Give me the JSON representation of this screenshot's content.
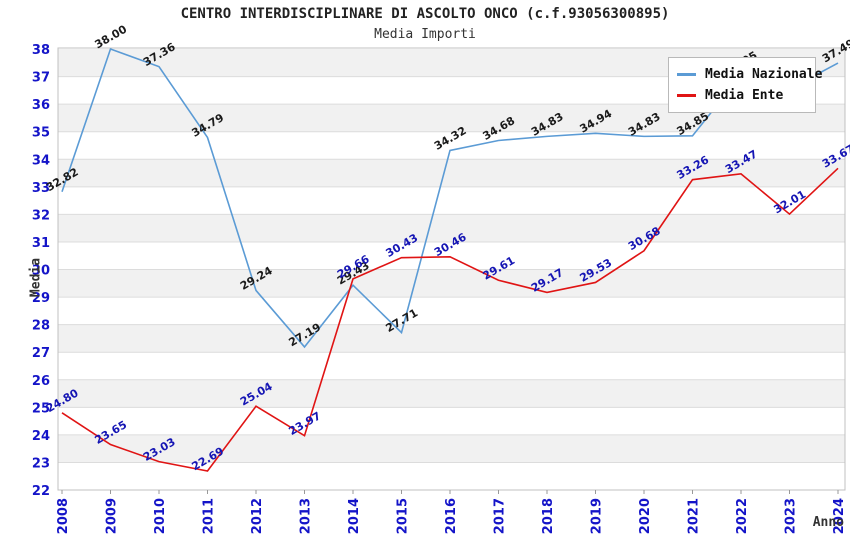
{
  "title": "CENTRO INTERDISCIPLINARE DI ASCOLTO ONCO (c.f.93056300895)",
  "subtitle": "Media Importi",
  "axes": {
    "y_title": "Media",
    "x_title": "Anno",
    "y_ticks": [
      22,
      23,
      24,
      25,
      26,
      27,
      28,
      29,
      30,
      31,
      32,
      33,
      34,
      35,
      36,
      37,
      38
    ],
    "x_ticks": [
      "2008",
      "2009",
      "2010",
      "2011",
      "2012",
      "2013",
      "2014",
      "2015",
      "2016",
      "2017",
      "2018",
      "2019",
      "2020",
      "2021",
      "2022",
      "2023",
      "2024"
    ],
    "tick_color": "#1414c8"
  },
  "legend": {
    "items": [
      {
        "label": "Media Nazionale",
        "color": "#5b9bd5"
      },
      {
        "label": "Media Ente",
        "color": "#e01414"
      }
    ]
  },
  "colors": {
    "band": "#f1f1f1",
    "grid": "#dcdcdc",
    "border": "#c0c0c0",
    "nazionale_line": "#5b9bd5",
    "ente_line": "#e01414",
    "nazionale_label": "#1a1a1a",
    "ente_label": "#1515b4"
  },
  "chart_data": {
    "type": "line",
    "title": "CENTRO INTERDISCIPLINARE DI ASCOLTO ONCO (c.f.93056300895)",
    "subtitle": "Media Importi",
    "xlabel": "Anno",
    "ylabel": "Media",
    "ylim": [
      22,
      38
    ],
    "grid": "alternating horizontal bands, gray on odd-to-even unit intervals",
    "legend_position": "top-right inside plot",
    "x": [
      2008,
      2009,
      2010,
      2011,
      2012,
      2013,
      2014,
      2015,
      2016,
      2017,
      2018,
      2019,
      2020,
      2021,
      2022,
      2023,
      2024
    ],
    "series": [
      {
        "name": "Media Nazionale",
        "color": "#5b9bd5",
        "label_color": "#1a1a1a",
        "values": [
          32.82,
          38.0,
          37.36,
          34.79,
          29.24,
          27.19,
          29.43,
          27.71,
          34.32,
          34.68,
          34.83,
          34.94,
          34.83,
          34.85,
          37.05,
          36.55,
          37.49
        ],
        "note": "2023 value estimated from line slope; its label is hidden behind the legend box"
      },
      {
        "name": "Media Ente",
        "color": "#e01414",
        "label_color": "#1515b4",
        "values": [
          24.8,
          23.65,
          23.03,
          22.69,
          25.04,
          23.97,
          29.66,
          30.43,
          30.46,
          29.61,
          29.17,
          29.53,
          30.68,
          33.26,
          33.47,
          32.01,
          33.67
        ]
      }
    ]
  }
}
